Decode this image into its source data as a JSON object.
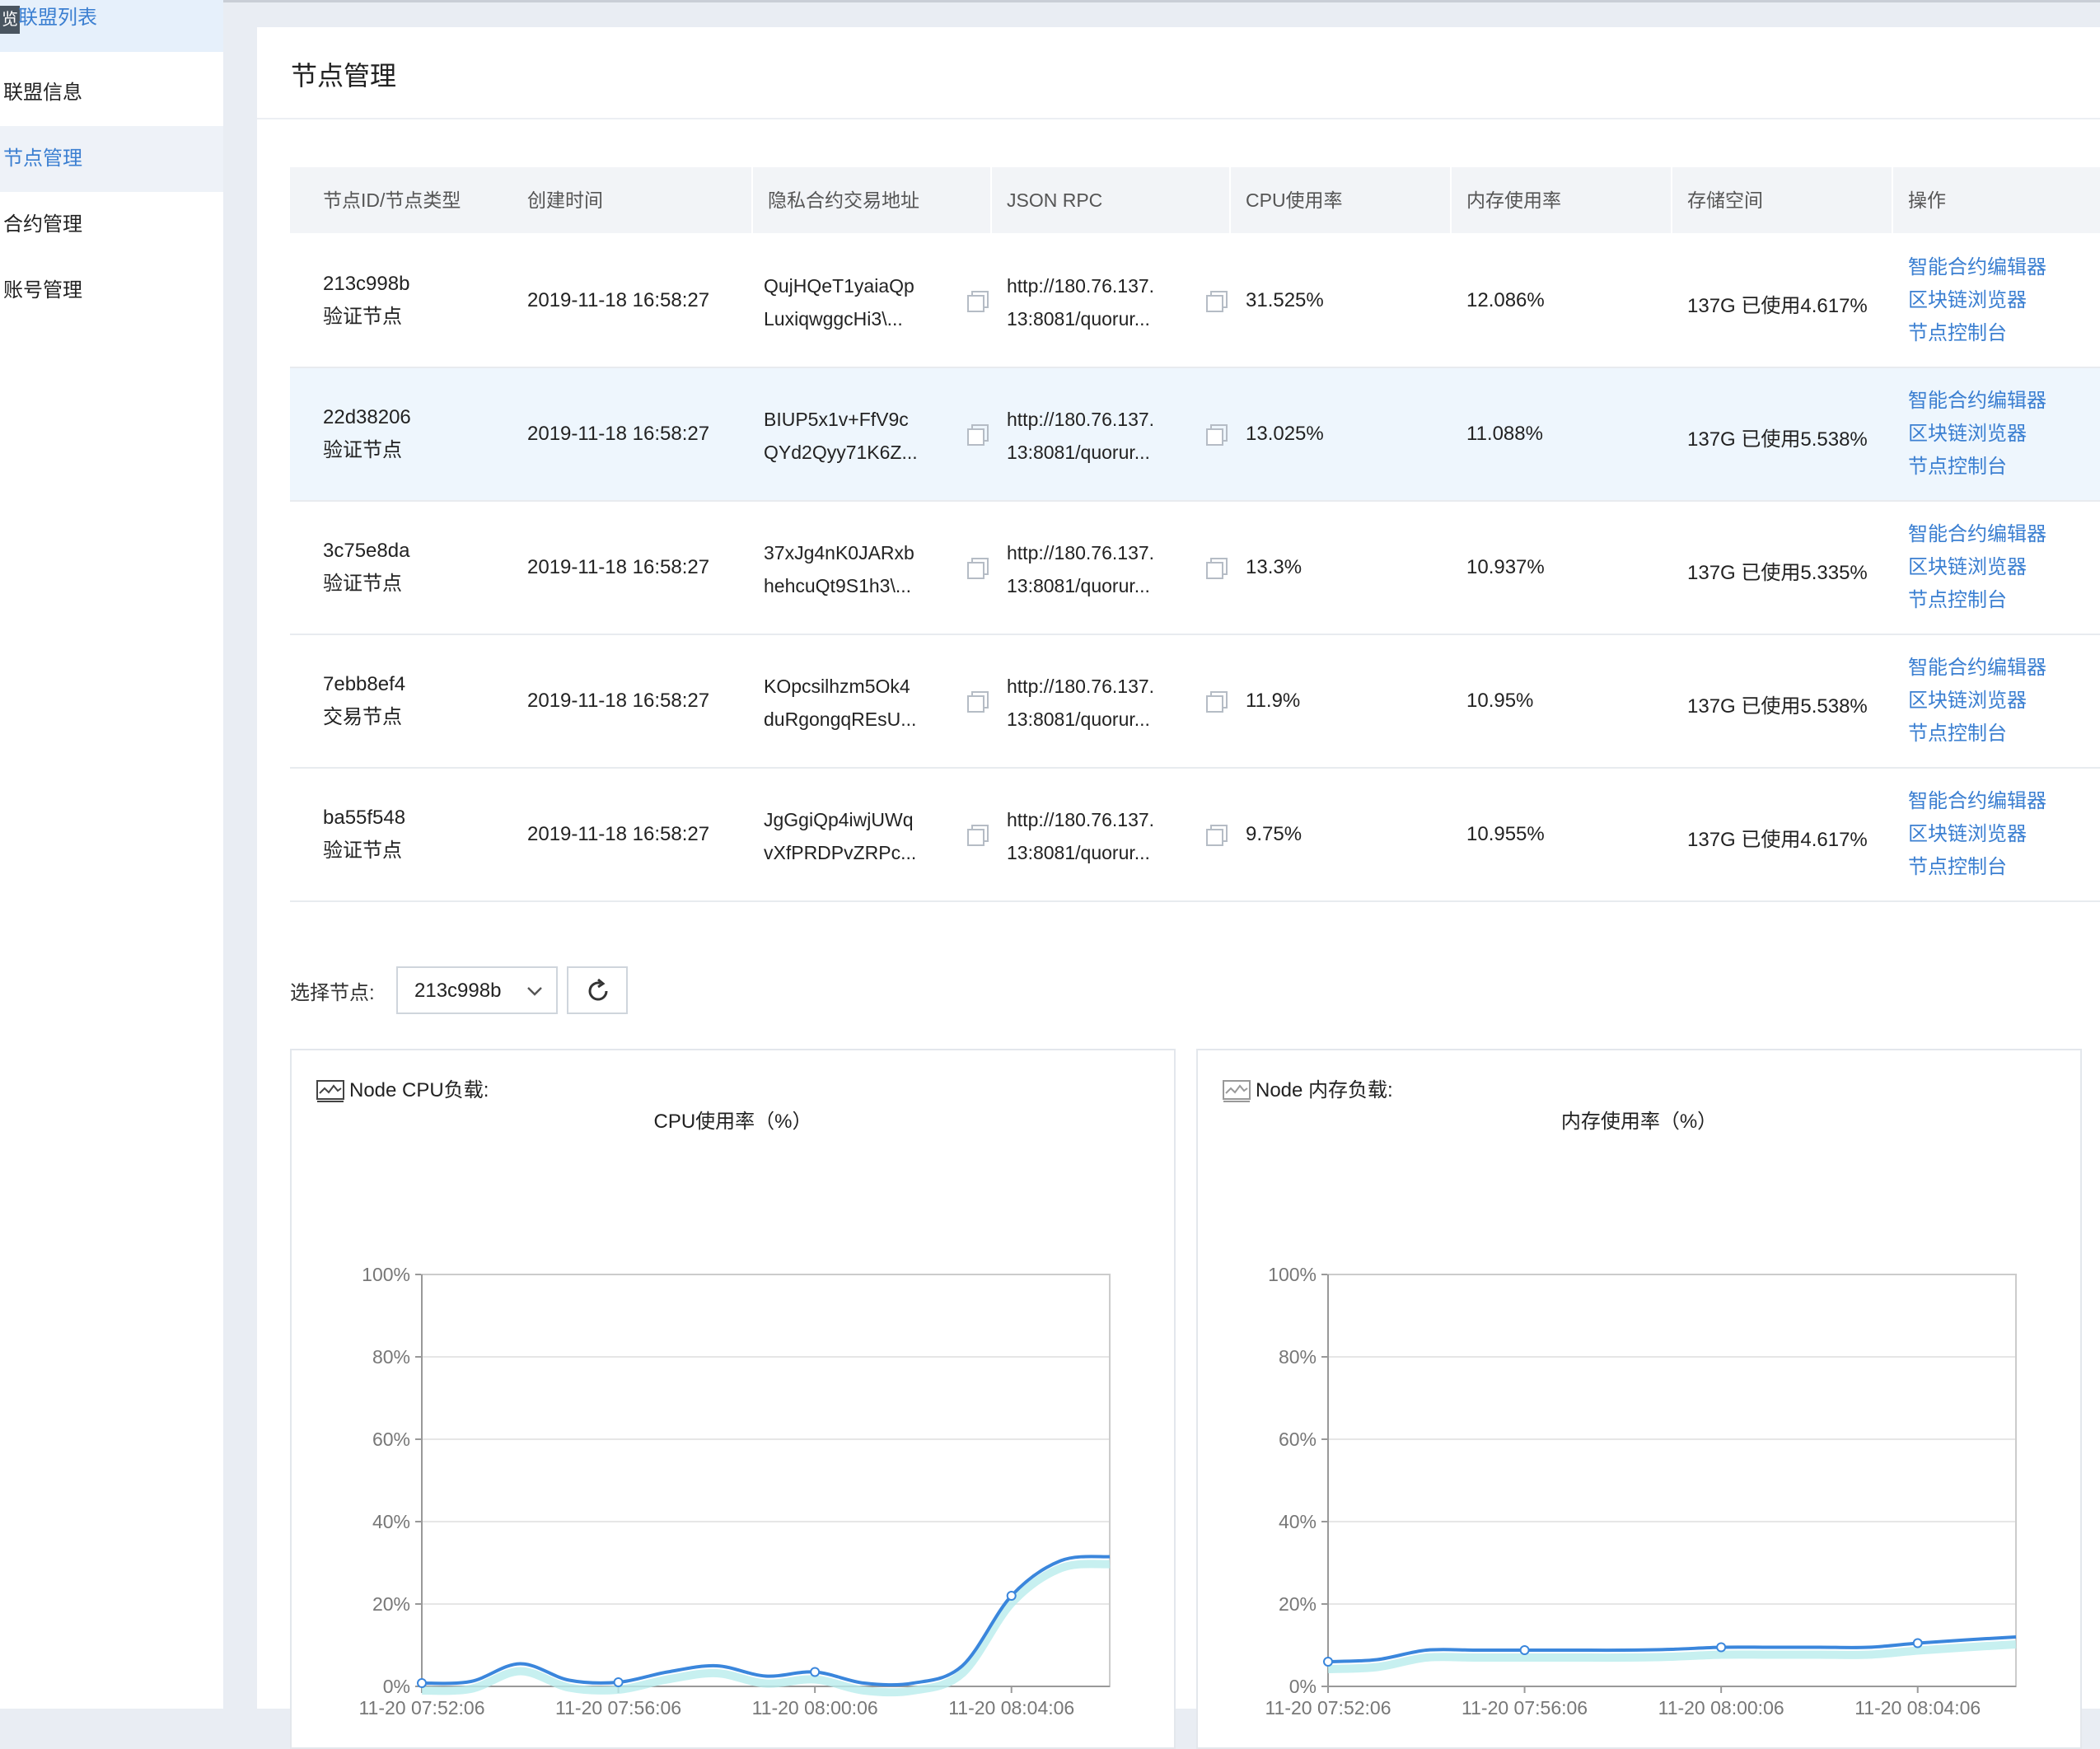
{
  "sidebar": {
    "badge": "览",
    "items": [
      {
        "label": "联盟列表"
      },
      {
        "label": "联盟信息"
      },
      {
        "label": "节点管理"
      },
      {
        "label": "合约管理"
      },
      {
        "label": "账号管理"
      }
    ]
  },
  "page": {
    "title": "节点管理"
  },
  "table": {
    "headers": [
      "节点ID/节点类型",
      "创建时间",
      "隐私合约交易地址",
      "JSON RPC",
      "CPU使用率",
      "内存使用率",
      "存储空间",
      "操作"
    ],
    "rows": [
      {
        "id": "213c998b",
        "type": "验证节点",
        "created": "2019-11-18 16:58:27",
        "addr1": "QujHQeT1yaiaQp",
        "addr2": "LuxiqwggcHi3\\...",
        "rpc1": "http://180.76.137.",
        "rpc2": "13:8081/quorur...",
        "cpu": "31.525%",
        "mem": "12.086%",
        "storage": "137G 已使用4.617%"
      },
      {
        "id": "22d38206",
        "type": "验证节点",
        "created": "2019-11-18 16:58:27",
        "addr1": "BIUP5x1v+FfV9c",
        "addr2": "QYd2Qyy71K6Z...",
        "rpc1": "http://180.76.137.",
        "rpc2": "13:8081/quorur...",
        "cpu": "13.025%",
        "mem": "11.088%",
        "storage": "137G 已使用5.538%"
      },
      {
        "id": "3c75e8da",
        "type": "验证节点",
        "created": "2019-11-18 16:58:27",
        "addr1": "37xJg4nK0JARxb",
        "addr2": "hehcuQt9S1h3\\...",
        "rpc1": "http://180.76.137.",
        "rpc2": "13:8081/quorur...",
        "cpu": "13.3%",
        "mem": "10.937%",
        "storage": "137G 已使用5.335%"
      },
      {
        "id": "7ebb8ef4",
        "type": "交易节点",
        "created": "2019-11-18 16:58:27",
        "addr1": "KOpcsilhzm5Ok4",
        "addr2": "duRgongqREsU...",
        "rpc1": "http://180.76.137.",
        "rpc2": "13:8081/quorur...",
        "cpu": "11.9%",
        "mem": "10.95%",
        "storage": "137G 已使用5.538%"
      },
      {
        "id": "ba55f548",
        "type": "验证节点",
        "created": "2019-11-18 16:58:27",
        "addr1": "JgGgiQp4iwjUWq",
        "addr2": "vXfPRDPvZRPc...",
        "rpc1": "http://180.76.137.",
        "rpc2": "13:8081/quorur...",
        "cpu": "9.75%",
        "mem": "10.955%",
        "storage": "137G 已使用4.617%"
      }
    ],
    "actions": [
      "智能合约编辑器",
      "区块链浏览器",
      "节点控制台"
    ]
  },
  "selector": {
    "label": "选择节点:",
    "value": "213c998b"
  },
  "panels": {
    "cpu": {
      "header": "Node CPU负载:",
      "title": "CPU使用率（%）"
    },
    "mem": {
      "header": "Node 内存负载:",
      "title": "内存使用率（%）"
    }
  },
  "colors": {
    "accent": "#3b7fd1",
    "line": "#3a86dc",
    "area": "#b9ecec"
  },
  "chart_data": [
    {
      "type": "area",
      "title": "CPU使用率（%）",
      "ylim": [
        0,
        100
      ],
      "yticks": [
        "0%",
        "20%",
        "40%",
        "60%",
        "80%",
        "100%"
      ],
      "xticks": [
        "11-20 07:52:06",
        "11-20 07:56:06",
        "11-20 08:00:06",
        "11-20 08:04:06"
      ],
      "x": [
        "07:52:06",
        "07:53:06",
        "07:54:06",
        "07:55:06",
        "07:56:06",
        "07:57:06",
        "07:58:06",
        "07:59:06",
        "08:00:06",
        "08:01:06",
        "08:02:06",
        "08:03:06",
        "08:04:06",
        "08:05:06",
        "08:06:06"
      ],
      "values": [
        0.8,
        1.2,
        5.5,
        1.5,
        1,
        3.5,
        5,
        2.5,
        3.5,
        0.8,
        0.8,
        5,
        22,
        30.5,
        31.5
      ],
      "markers": [
        0,
        4,
        8,
        12
      ]
    },
    {
      "type": "area",
      "title": "内存使用率（%）",
      "ylim": [
        0,
        100
      ],
      "yticks": [
        "0%",
        "20%",
        "40%",
        "60%",
        "80%",
        "100%"
      ],
      "xticks": [
        "11-20 07:52:06",
        "11-20 07:56:06",
        "11-20 08:00:06",
        "11-20 08:04:06"
      ],
      "x": [
        "07:52:06",
        "07:53:06",
        "07:54:06",
        "07:55:06",
        "07:56:06",
        "07:57:06",
        "07:58:06",
        "07:59:06",
        "08:00:06",
        "08:01:06",
        "08:02:06",
        "08:03:06",
        "08:04:06",
        "08:05:06",
        "08:06:06"
      ],
      "values": [
        6,
        6.5,
        8.8,
        8.8,
        8.8,
        8.8,
        8.8,
        9,
        9.5,
        9.5,
        9.5,
        9.5,
        10.5,
        11.3,
        12
      ],
      "markers": [
        0,
        4,
        8,
        12
      ]
    }
  ]
}
